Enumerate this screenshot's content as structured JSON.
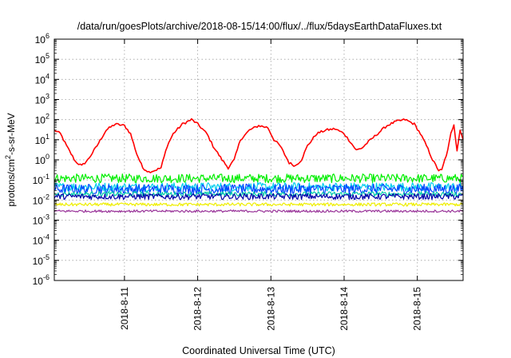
{
  "chart_data": {
    "type": "line",
    "title": "/data/run/goesPlots/archive/2018-08-15/14:00/flux/../flux/5daysEarthDataFluxes.txt",
    "xlabel": "Coordinated Universal Time (UTC)",
    "ylabel_parts": [
      "protons/cm",
      "2",
      "-s-sr-MeV"
    ],
    "x_axis": {
      "type": "date",
      "range": [
        "2018-08-10T01:00",
        "2018-08-15T15:00"
      ]
    },
    "xticks": [
      {
        "label": "2018-8-11",
        "date": "2018-08-11T00:00"
      },
      {
        "label": "2018-8-12",
        "date": "2018-08-12T00:00"
      },
      {
        "label": "2018-8-13",
        "date": "2018-08-13T00:00"
      },
      {
        "label": "2018-8-14",
        "date": "2018-08-14T00:00"
      },
      {
        "label": "2018-8-15",
        "date": "2018-08-15T00:00"
      }
    ],
    "y_axis": {
      "scale": "log",
      "range": [
        1e-06,
        1000000.0
      ]
    },
    "yticks": [
      {
        "base": "10",
        "exp": "-6",
        "value": 1e-06
      },
      {
        "base": "10",
        "exp": "-5",
        "value": 1e-05
      },
      {
        "base": "10",
        "exp": "-4",
        "value": 0.0001
      },
      {
        "base": "10",
        "exp": "-3",
        "value": 0.001
      },
      {
        "base": "10",
        "exp": "-2",
        "value": 0.01
      },
      {
        "base": "10",
        "exp": "-1",
        "value": 0.1
      },
      {
        "base": "10",
        "exp": "0",
        "value": 1
      },
      {
        "base": "10",
        "exp": "1",
        "value": 10
      },
      {
        "base": "10",
        "exp": "2",
        "value": 100
      },
      {
        "base": "10",
        "exp": "3",
        "value": 1000
      },
      {
        "base": "10",
        "exp": "4",
        "value": 10000
      },
      {
        "base": "10",
        "exp": "5",
        "value": 100000
      },
      {
        "base": "10",
        "exp": "6",
        "value": 1000000
      }
    ],
    "grid": true,
    "series": [
      {
        "color": "#ff0000",
        "base": 0.8,
        "noise_decades": 0.06,
        "points": [
          [
            "2018-08-10T01:00",
            30
          ],
          [
            "2018-08-10T03:00",
            20
          ],
          [
            "2018-08-10T05:00",
            5
          ],
          [
            "2018-08-10T08:00",
            0.8
          ],
          [
            "2018-08-10T10:00",
            0.5
          ],
          [
            "2018-08-10T12:00",
            1
          ],
          [
            "2018-08-10T15:00",
            5
          ],
          [
            "2018-08-10T18:00",
            30
          ],
          [
            "2018-08-10T21:00",
            60
          ],
          [
            "2018-08-11T00:00",
            50
          ],
          [
            "2018-08-11T02:00",
            20
          ],
          [
            "2018-08-11T04:00",
            2
          ],
          [
            "2018-08-11T06:00",
            0.4
          ],
          [
            "2018-08-11T08:00",
            0.25
          ],
          [
            "2018-08-11T10:00",
            0.3
          ],
          [
            "2018-08-11T12:00",
            0.4
          ],
          [
            "2018-08-11T14:00",
            5
          ],
          [
            "2018-08-11T16:00",
            20
          ],
          [
            "2018-08-11T19:00",
            60
          ],
          [
            "2018-08-11T22:00",
            100
          ],
          [
            "2018-08-12T00:00",
            60
          ],
          [
            "2018-08-12T03:00",
            20
          ],
          [
            "2018-08-12T05:00",
            5
          ],
          [
            "2018-08-12T08:00",
            1
          ],
          [
            "2018-08-12T10:00",
            0.4
          ],
          [
            "2018-08-12T12:00",
            1
          ],
          [
            "2018-08-12T14:00",
            10
          ],
          [
            "2018-08-12T17:00",
            30
          ],
          [
            "2018-08-12T20:00",
            50
          ],
          [
            "2018-08-12T23:00",
            40
          ],
          [
            "2018-08-13T01:00",
            10
          ],
          [
            "2018-08-13T03:00",
            5
          ],
          [
            "2018-08-13T06:00",
            0.7
          ],
          [
            "2018-08-13T08:00",
            0.5
          ],
          [
            "2018-08-13T10:00",
            1
          ],
          [
            "2018-08-13T12:00",
            5
          ],
          [
            "2018-08-13T15:00",
            20
          ],
          [
            "2018-08-13T18:00",
            30
          ],
          [
            "2018-08-13T21:00",
            35
          ],
          [
            "2018-08-14T00:00",
            20
          ],
          [
            "2018-08-14T02:00",
            8
          ],
          [
            "2018-08-14T04:00",
            3
          ],
          [
            "2018-08-14T06:00",
            4
          ],
          [
            "2018-08-14T08:00",
            8
          ],
          [
            "2018-08-14T11:00",
            20
          ],
          [
            "2018-08-14T14:00",
            50
          ],
          [
            "2018-08-14T17:00",
            80
          ],
          [
            "2018-08-14T20:00",
            100
          ],
          [
            "2018-08-14T23:00",
            60
          ],
          [
            "2018-08-15T01:00",
            20
          ],
          [
            "2018-08-15T03:00",
            5
          ],
          [
            "2018-08-15T05:00",
            1
          ],
          [
            "2018-08-15T07:00",
            0.3
          ],
          [
            "2018-08-15T08:00",
            0.3
          ],
          [
            "2018-08-15T09:00",
            1
          ],
          [
            "2018-08-15T10:00",
            3
          ],
          [
            "2018-08-15T11:00",
            20
          ],
          [
            "2018-08-15T12:00",
            60
          ],
          [
            "2018-08-15T13:00",
            3
          ],
          [
            "2018-08-15T14:00",
            30
          ],
          [
            "2018-08-15T15:00",
            10
          ]
        ]
      },
      {
        "color": "#00ee00",
        "base": 0.12,
        "noise_decades": 0.22,
        "points": []
      },
      {
        "color": "#00ccee",
        "base": 0.045,
        "noise_decades": 0.22,
        "points": []
      },
      {
        "color": "#0044ff",
        "base": 0.035,
        "noise_decades": 0.25,
        "points": []
      },
      {
        "color": "#00ccaa",
        "base": 0.02,
        "noise_decades": 0.12,
        "points": []
      },
      {
        "color": "#0000aa",
        "base": 0.015,
        "noise_decades": 0.15,
        "points": []
      },
      {
        "color": "#eeee00",
        "base": 0.006,
        "noise_decades": 0.08,
        "points": []
      },
      {
        "color": "#993399",
        "base": 0.0028,
        "noise_decades": 0.06,
        "points": []
      }
    ]
  }
}
